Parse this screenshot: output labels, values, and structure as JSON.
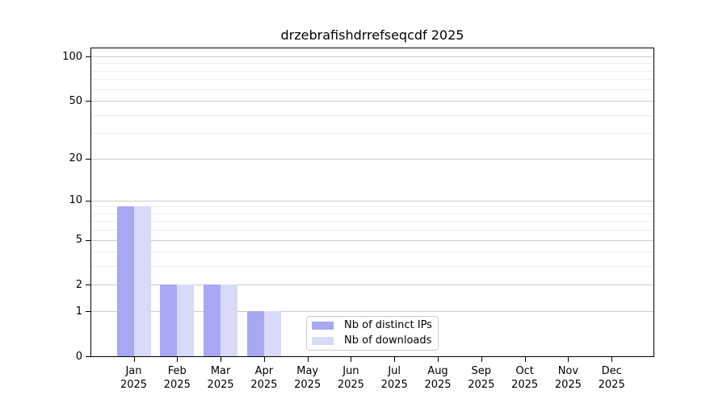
{
  "chart_data": {
    "type": "bar",
    "title": "drzebrafishdrrefseqcdf 2025",
    "categories": [
      "Jan",
      "Feb",
      "Mar",
      "Apr",
      "May",
      "Jun",
      "Jul",
      "Aug",
      "Sep",
      "Oct",
      "Nov",
      "Dec"
    ],
    "x_year": "2025",
    "series": [
      {
        "name": "Nb of distinct IPs",
        "color": "#a7a7f2",
        "values": [
          9,
          2,
          2,
          1,
          0,
          0,
          0,
          0,
          0,
          0,
          0,
          0
        ]
      },
      {
        "name": "Nb of downloads",
        "color": "#d9d9f8",
        "values": [
          9,
          2,
          2,
          1,
          0,
          0,
          0,
          0,
          0,
          0,
          0,
          0
        ]
      }
    ],
    "y_scale": "log1p",
    "y_axis_top_value": 113.3,
    "y_ticks_major": [
      0,
      1,
      2,
      5,
      10,
      20,
      50,
      100
    ],
    "y_ticks_minor": [
      3,
      4,
      6,
      7,
      8,
      9,
      30,
      40,
      60,
      70,
      80,
      90
    ],
    "ylim": [
      0,
      113.3
    ],
    "grid": "horizontal",
    "legend_position": "lower-center"
  },
  "colors": {
    "bar_distinct_ips": "#a7a7f2",
    "bar_downloads": "#d9d9f8",
    "grid_major": "#cbcbcb",
    "grid_minor": "#ededed",
    "axis": "#000000",
    "legend_border": "#cccccc",
    "text": "#000000",
    "background": "#ffffff"
  }
}
